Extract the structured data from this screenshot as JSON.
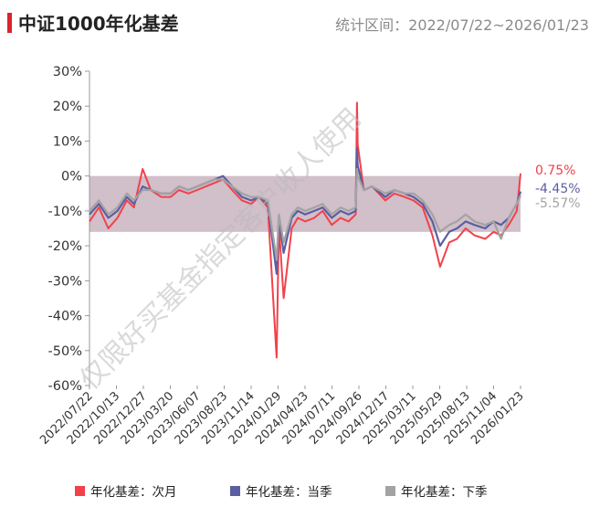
{
  "header": {
    "title": "中证1000年化基差",
    "range_label": "统计区间：2022/07/22~2026/01/23"
  },
  "watermark": "仅限好买基金指定客户收人使用",
  "chart_data": {
    "type": "line",
    "title": "中证1000年化基差",
    "subtitle": "统计区间：2022/07/22~2026/01/23",
    "xlabel": "",
    "ylabel": "",
    "ylim": [
      -60,
      30
    ],
    "y_ticks": [
      "30%",
      "20%",
      "10%",
      "0%",
      "-10%",
      "-20%",
      "-30%",
      "-40%",
      "-50%",
      "-60%"
    ],
    "y_tick_values": [
      30,
      20,
      10,
      0,
      -10,
      -20,
      -30,
      -40,
      -50,
      -60
    ],
    "x_ticks": [
      "2022/07/22",
      "2022/10/13",
      "2022/12/27",
      "2023/03/20",
      "2023/06/07",
      "2023/08/23",
      "2023/11/14",
      "2024/01/29",
      "2024/04/23",
      "2024/07/11",
      "2024/09/26",
      "2024/12/17",
      "2025/03/11",
      "2025/05/29",
      "2025/08/13",
      "2025/11/04",
      "2026/01/23"
    ],
    "grid": false,
    "legend_position": "bottom",
    "end_labels": [
      "0.75%",
      "-4.45%",
      "-5.57%"
    ],
    "x": [
      "2022/07/22",
      "2022/08/19",
      "2022/09/16",
      "2022/10/13",
      "2022/11/10",
      "2022/12/01",
      "2022/12/27",
      "2023/01/20",
      "2023/02/20",
      "2023/03/20",
      "2023/04/14",
      "2023/05/12",
      "2023/06/07",
      "2023/07/03",
      "2023/07/28",
      "2023/08/23",
      "2023/09/19",
      "2023/10/18",
      "2023/11/14",
      "2023/12/08",
      "2024/01/03",
      "2024/01/29",
      "2024/02/05",
      "2024/02/19",
      "2024/03/14",
      "2024/04/01",
      "2024/04/23",
      "2024/05/20",
      "2024/06/14",
      "2024/07/11",
      "2024/08/06",
      "2024/08/30",
      "2024/09/20",
      "2024/09/24",
      "2024/09/26",
      "2024/10/14",
      "2024/11/08",
      "2024/12/17",
      "2025/01/13",
      "2025/02/12",
      "2025/03/11",
      "2025/04/07",
      "2025/05/06",
      "2025/05/29",
      "2025/06/25",
      "2025/07/18",
      "2025/08/13",
      "2025/09/08",
      "2025/10/10",
      "2025/11/04",
      "2025/11/26",
      "2025/12/19",
      "2026/01/12",
      "2026/01/23"
    ],
    "series": [
      {
        "name": "年化基差：次月",
        "color": "#f2414a",
        "values": [
          -13,
          -9,
          -15,
          -12,
          -7,
          -9,
          2,
          -4,
          -6,
          -6,
          -4,
          -5,
          -4,
          -3,
          -2,
          -1,
          -4,
          -7,
          -8,
          -6,
          -9,
          -52,
          -14,
          -35,
          -15,
          -12,
          -13,
          -12,
          -10,
          -14,
          -12,
          -13,
          -11,
          21,
          9,
          -4,
          -3,
          -7,
          -5,
          -6,
          -7,
          -9,
          -17,
          -26,
          -19,
          -18,
          -15,
          -17,
          -18,
          -16,
          -17,
          -14,
          -10,
          0.75
        ]
      },
      {
        "name": "年化基差：当季",
        "color": "#5b5fa1",
        "values": [
          -11,
          -8,
          -12,
          -10,
          -6,
          -8,
          -3,
          -4,
          -5,
          -5,
          -3,
          -4,
          -3,
          -2,
          -1,
          0,
          -3,
          -6,
          -7,
          -6,
          -8,
          -28,
          -12,
          -22,
          -12,
          -10,
          -11,
          -10,
          -9,
          -12,
          -10,
          -11,
          -10,
          8,
          3,
          -4,
          -3,
          -6,
          -4,
          -5,
          -6,
          -8,
          -13,
          -20,
          -16,
          -15,
          -13,
          -14,
          -15,
          -13,
          -14,
          -12,
          -8,
          -4.45
        ]
      },
      {
        "name": "年化基差：下季",
        "color": "#a3a3a3",
        "values": [
          -10,
          -7,
          -11,
          -9,
          -5,
          -7,
          -4,
          -4,
          -5,
          -5,
          -3,
          -4,
          -3,
          -2,
          -1,
          -1,
          -3,
          -5,
          -6,
          -6,
          -7,
          -24,
          -11,
          -19,
          -11,
          -9,
          -10,
          -9,
          -8,
          -11,
          -9,
          -10,
          -9,
          2,
          0,
          -4,
          -3,
          -5,
          -4,
          -5,
          -5,
          -7,
          -11,
          -16,
          -14,
          -13,
          -11,
          -13,
          -14,
          -13,
          -18,
          -12,
          -8,
          -5.57
        ]
      }
    ]
  }
}
